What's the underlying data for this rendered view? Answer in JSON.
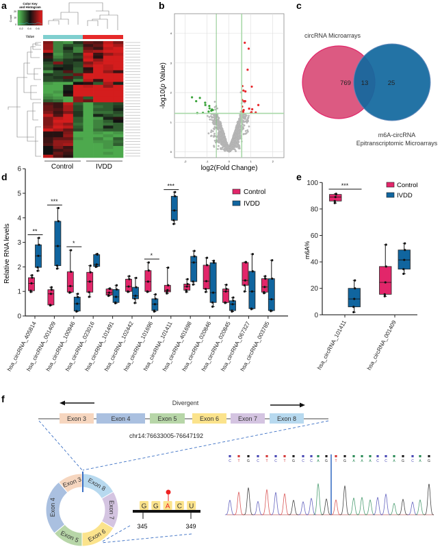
{
  "panels": {
    "a": "a",
    "b": "b",
    "c": "c",
    "d": "d",
    "e": "e",
    "f": "f"
  },
  "colors": {
    "control": "#e2266a",
    "ivdd": "#10659f",
    "venn_pink": "#dc5a82",
    "venn_blue": "#13699f",
    "heat_green": "#5ccf5c",
    "heat_red": "#ea1e1e",
    "heat_black": "#111111",
    "up": "#e8262a",
    "down": "#3aa33a",
    "ns": "#b8b8b8"
  },
  "heatmap": {
    "key_title_1": "Color Key",
    "key_title_2": "and Histogram",
    "key_ylabel": "Count",
    "key_xlabel": "Value",
    "key_xticks": [
      "0.2",
      "0.4",
      "0.6"
    ],
    "key_yticks": [
      "0",
      "10",
      "20"
    ],
    "group_labels": [
      "Control",
      "IVDD"
    ],
    "matrix": [
      [
        0.75,
        0.2,
        0.15,
        0.4,
        0.7,
        0.65,
        0.9,
        0.75
      ],
      [
        0.8,
        0.2,
        0.35,
        0.3,
        0.6,
        0.7,
        0.95,
        0.85
      ],
      [
        0.8,
        0.2,
        0.45,
        0.2,
        0.7,
        0.6,
        0.9,
        0.95
      ],
      [
        0.9,
        0.2,
        0.35,
        0.2,
        0.8,
        0.85,
        0.95,
        0.95
      ],
      [
        0.55,
        0.15,
        0.3,
        0.4,
        0.95,
        0.6,
        0.8,
        0.9
      ],
      [
        0.6,
        0.2,
        0.3,
        0.35,
        0.9,
        0.55,
        0.95,
        0.95
      ],
      [
        0.45,
        0.3,
        0.4,
        0.45,
        0.95,
        0.8,
        0.95,
        0.95
      ],
      [
        0.35,
        0.75,
        0.4,
        0.35,
        0.75,
        0.9,
        0.95,
        0.95
      ],
      [
        0.3,
        0.4,
        0.45,
        0.35,
        0.85,
        0.95,
        0.9,
        0.95
      ],
      [
        0.35,
        0.5,
        0.45,
        0.3,
        0.55,
        0.95,
        0.9,
        0.95
      ],
      [
        0.15,
        0.35,
        0.65,
        0.3,
        0.6,
        0.95,
        0.8,
        0.6
      ],
      [
        0.4,
        0.35,
        0.35,
        0.7,
        0.95,
        0.95,
        0.95,
        0.95
      ],
      [
        0.35,
        0.4,
        0.65,
        0.35,
        0.95,
        0.95,
        0.95,
        0.95
      ],
      [
        0.35,
        0.35,
        0.4,
        0.2,
        0.9,
        0.6,
        0.95,
        0.95
      ],
      [
        0.15,
        0.1,
        0.1,
        0.5,
        0.55,
        0.3,
        0.85,
        0.45
      ],
      [
        0.1,
        0.1,
        0.45,
        0.95,
        0.9,
        0.95,
        0.8,
        0.95
      ],
      [
        0.1,
        0.1,
        0.45,
        0.95,
        0.95,
        0.95,
        0.95,
        0.95
      ],
      [
        0.1,
        0.15,
        0.5,
        0.95,
        0.95,
        0.95,
        0.95,
        0.95
      ],
      [
        0.15,
        0.1,
        0.55,
        0.95,
        0.95,
        0.95,
        0.95,
        0.95
      ],
      [
        0.2,
        0.15,
        0.1,
        0.8,
        0.3,
        0.95,
        0.95,
        0.95
      ],
      [
        0.3,
        0.25,
        0.1,
        0.8,
        0.7,
        0.95,
        0.95,
        0.95
      ],
      [
        0.65,
        0.6,
        0.9,
        0.3,
        0.1,
        0.3,
        0.3,
        0.35
      ],
      [
        0.7,
        0.6,
        0.85,
        0.35,
        0.1,
        0.25,
        0.3,
        0.4
      ],
      [
        0.7,
        0.65,
        0.85,
        0.35,
        0.1,
        0.3,
        0.3,
        0.45
      ],
      [
        0.75,
        0.6,
        0.75,
        0.4,
        0.1,
        0.25,
        0.25,
        0.35
      ],
      [
        0.9,
        0.65,
        0.95,
        0.4,
        0.1,
        0.45,
        0.35,
        0.3
      ],
      [
        0.75,
        0.9,
        0.95,
        0.3,
        0.1,
        0.15,
        0.45,
        0.55
      ],
      [
        0.75,
        0.95,
        0.95,
        0.3,
        0.1,
        0.2,
        0.3,
        0.5
      ],
      [
        0.75,
        0.9,
        0.8,
        0.25,
        0.1,
        0.2,
        0.25,
        0.3
      ],
      [
        0.8,
        0.95,
        0.9,
        0.3,
        0.1,
        0.2,
        0.45,
        0.3
      ],
      [
        0.95,
        0.85,
        0.7,
        0.35,
        0.1,
        0.25,
        0.3,
        0.3
      ],
      [
        0.55,
        0.55,
        0.75,
        0.1,
        0.1,
        0.15,
        0.1,
        0.15
      ],
      [
        0.55,
        0.55,
        0.8,
        0.1,
        0.1,
        0.1,
        0.15,
        0.1
      ],
      [
        0.6,
        0.7,
        0.7,
        0.15,
        0.1,
        0.2,
        0.1,
        0.3
      ],
      [
        0.6,
        0.8,
        0.8,
        0.1,
        0.1,
        0.15,
        0.15,
        0.25
      ],
      [
        0.65,
        0.8,
        0.85,
        0.1,
        0.1,
        0.1,
        0.15,
        0.3
      ],
      [
        0.5,
        0.75,
        0.6,
        0.1,
        0.1,
        0.1,
        0.15,
        0.1
      ],
      [
        0.5,
        0.6,
        0.65,
        0.1,
        0.1,
        0.1,
        0.1,
        0.1
      ],
      [
        0.5,
        0.7,
        0.6,
        0.1,
        0.1,
        0.1,
        0.15,
        0.1
      ],
      [
        0.9,
        0.65,
        0.55,
        0.1,
        0.1,
        0.1,
        0.1,
        0.1
      ]
    ]
  },
  "venn": {
    "left_label": "circRNA Microarrays",
    "right_label_1": "m6A-circRNA",
    "right_label_2": "Epitranscriptomic Microarrays",
    "left_only": "769",
    "overlap": "13",
    "right_only": "25"
  },
  "chart_data": [
    {
      "id": "volcano",
      "type": "scatter",
      "xlabel": "log2(Fold Change)",
      "ylabel_prefix": "-log10(",
      "ylabel_p": "p",
      "ylabel_suffix": " Value)",
      "xlim": [
        -2.5,
        2.5
      ],
      "ylim": [
        -0.2,
        4.7
      ],
      "xticks": [
        -2,
        -1,
        0,
        1,
        2
      ],
      "yticks": [
        0,
        1,
        2,
        3,
        4
      ],
      "thresholds": {
        "log2fc": [
          -0.58,
          0.58
        ],
        "neglog10p": 1.3
      },
      "background_point_count": 1500,
      "up": [
        [
          0.72,
          3.68
        ],
        [
          0.9,
          3.48
        ],
        [
          0.85,
          2.77
        ],
        [
          0.61,
          2.22
        ],
        [
          1.04,
          2.2
        ],
        [
          0.66,
          2.07
        ],
        [
          0.75,
          2.04
        ],
        [
          0.6,
          1.75
        ],
        [
          0.69,
          1.71
        ],
        [
          0.74,
          1.71
        ],
        [
          1.34,
          1.58
        ],
        [
          0.6,
          1.53
        ],
        [
          0.92,
          1.46
        ],
        [
          1.06,
          1.44
        ],
        [
          0.67,
          1.41
        ],
        [
          0.59,
          1.37
        ],
        [
          0.65,
          1.35
        ],
        [
          1.0,
          1.32
        ],
        [
          1.22,
          1.33
        ],
        [
          1.03,
          1.34
        ]
      ],
      "down": [
        [
          -1.69,
          1.84
        ],
        [
          -1.33,
          1.82
        ],
        [
          -1.5,
          1.71
        ],
        [
          -1.09,
          1.66
        ],
        [
          -1.08,
          1.58
        ],
        [
          -0.9,
          1.55
        ],
        [
          -0.89,
          1.47
        ],
        [
          -0.78,
          1.43
        ],
        [
          -0.74,
          1.41
        ],
        [
          -0.81,
          1.39
        ],
        [
          -0.93,
          1.36
        ],
        [
          -1.45,
          1.31
        ],
        [
          -1.19,
          1.32
        ]
      ]
    },
    {
      "id": "rna-levels",
      "type": "box",
      "ylabel": "Relative RNA levels",
      "ylim": [
        0,
        6
      ],
      "yticks": [
        0,
        1,
        2,
        3,
        4,
        5,
        6
      ],
      "legend": [
        "Control",
        "IVDD"
      ],
      "legend_position": "top-right",
      "categories": [
        "hsa_circRNA_405814",
        "hsa_circRNA_001409",
        "hsa_circRNA_100946",
        "hsa_circRNA_023016",
        "hsa_circRNA_101491",
        "hsa_circRNA_102442",
        "hsa_circRNA_101696",
        "hsa_circRNA_101411",
        "hsa_circRNA_401698",
        "hsa_circRNA_020846",
        "hsa_circRNA_020845",
        "hsa_circRNA_067327",
        "hsa_circRNA_003785"
      ],
      "series": [
        {
          "name": "Control",
          "boxes": [
            [
              0.98,
              1.03,
              1.33,
              1.56,
              1.66
            ],
            [
              0.43,
              0.45,
              0.9,
              1.07,
              1.17
            ],
            [
              0.95,
              0.97,
              1.22,
              1.8,
              2.68
            ],
            [
              0.78,
              0.97,
              1.4,
              1.78,
              2.05
            ],
            [
              0.82,
              0.85,
              0.95,
              1.1,
              1.12
            ],
            [
              0.98,
              1.0,
              1.2,
              1.5,
              1.62
            ],
            [
              0.98,
              1.0,
              1.4,
              1.85,
              2.18
            ],
            [
              0.92,
              0.98,
              1.05,
              1.25,
              1.97
            ],
            [
              0.98,
              1.05,
              1.2,
              1.3,
              1.5
            ],
            [
              0.98,
              1.1,
              1.42,
              2.07,
              2.37
            ],
            [
              0.53,
              0.55,
              1.0,
              1.1,
              1.27
            ],
            [
              1.0,
              1.25,
              1.45,
              2.18,
              2.2
            ],
            [
              0.93,
              0.97,
              1.18,
              1.52,
              1.62
            ]
          ]
        },
        {
          "name": "IVDD",
          "boxes": [
            [
              1.84,
              1.98,
              2.45,
              2.9,
              3.18
            ],
            [
              1.93,
              2.05,
              2.85,
              3.86,
              4.4
            ],
            [
              0.18,
              0.2,
              0.5,
              0.77,
              0.9
            ],
            [
              2.0,
              2.02,
              2.1,
              2.5,
              2.53
            ],
            [
              0.52,
              0.55,
              0.78,
              1.08,
              1.25
            ],
            [
              0.53,
              0.7,
              0.82,
              1.17,
              1.55
            ],
            [
              0.18,
              0.22,
              0.48,
              0.7,
              0.88
            ],
            [
              3.75,
              3.9,
              4.3,
              4.88,
              5.05
            ],
            [
              1.28,
              1.4,
              2.18,
              2.43,
              2.65
            ],
            [
              0.38,
              0.55,
              0.95,
              2.17,
              2.25
            ],
            [
              0.18,
              0.22,
              0.48,
              0.62,
              0.75
            ],
            [
              0.28,
              0.3,
              1.0,
              1.82,
              2.52
            ],
            [
              0.2,
              0.22,
              0.68,
              1.52,
              2.27
            ]
          ]
        }
      ],
      "significance": [
        {
          "index": 0,
          "label": "**",
          "y": 3.31
        },
        {
          "index": 1,
          "label": "***",
          "y": 4.52
        },
        {
          "index": 2,
          "label": "*",
          "y": 2.82
        },
        {
          "index": 6,
          "label": "*",
          "y": 2.32
        },
        {
          "index": 7,
          "label": "***",
          "y": 5.15
        }
      ]
    },
    {
      "id": "m6a-percent",
      "type": "box",
      "ylabel": "m6A%",
      "ylim": [
        0,
        100
      ],
      "yticks": [
        0,
        20,
        40,
        60,
        80,
        100
      ],
      "legend": [
        "Control",
        "IVDD"
      ],
      "legend_position": "top-right",
      "categories": [
        "hsa_circRNA_101411",
        "hsa_circRNA_001409"
      ],
      "series": [
        {
          "name": "Control",
          "boxes": [
            [
              84.5,
              86,
              89,
              91,
              91.5
            ],
            [
              14,
              15.5,
              24.5,
              36.5,
              53
            ]
          ]
        },
        {
          "name": "IVDD",
          "boxes": [
            [
              2,
              6,
              12,
              20,
              26
            ],
            [
              31,
              34.5,
              41.5,
              49,
              54
            ]
          ]
        }
      ],
      "significance": [
        {
          "index": 0,
          "label": "***",
          "y": 95
        }
      ]
    }
  ],
  "gene": {
    "direction_label": "Divergent",
    "coords": "chr14:76633005-76647192",
    "exons": [
      {
        "label": "Exon 3",
        "color": "#f6d6bf"
      },
      {
        "label": "Exon 4",
        "color": "#aac0e0"
      },
      {
        "label": "Exon 5",
        "color": "#b7d6a8"
      },
      {
        "label": "Exon 6",
        "color": "#fbe38c"
      },
      {
        "label": "Exon 7",
        "color": "#d4c4e1"
      },
      {
        "label": "Exon 8",
        "color": "#b7d9ef"
      }
    ],
    "motif": [
      "G",
      "G",
      "A",
      "C",
      "U"
    ],
    "motif_start": "345",
    "motif_end": "349",
    "sequence": [
      "C",
      "T",
      "G",
      "C",
      "T",
      "C",
      "T",
      "G",
      "C",
      "C",
      "A",
      "G",
      "T",
      "G",
      "A",
      "A",
      "A",
      "C",
      "C",
      "A",
      "G",
      "C",
      "A",
      "G"
    ],
    "peak_heights": [
      0.47,
      0.73,
      0.87,
      0.43,
      0.81,
      0.72,
      0.68,
      0.47,
      0.42,
      0.53,
      1.0,
      0.51,
      0.48,
      0.93,
      0.54,
      0.56,
      0.48,
      0.56,
      0.67,
      0.37,
      0.5,
      0.41,
      0.48,
      1.0
    ],
    "base_colors": {
      "C": "#4848b4",
      "T": "#d43a3a",
      "G": "#222222",
      "A": "#2c8c58"
    }
  }
}
